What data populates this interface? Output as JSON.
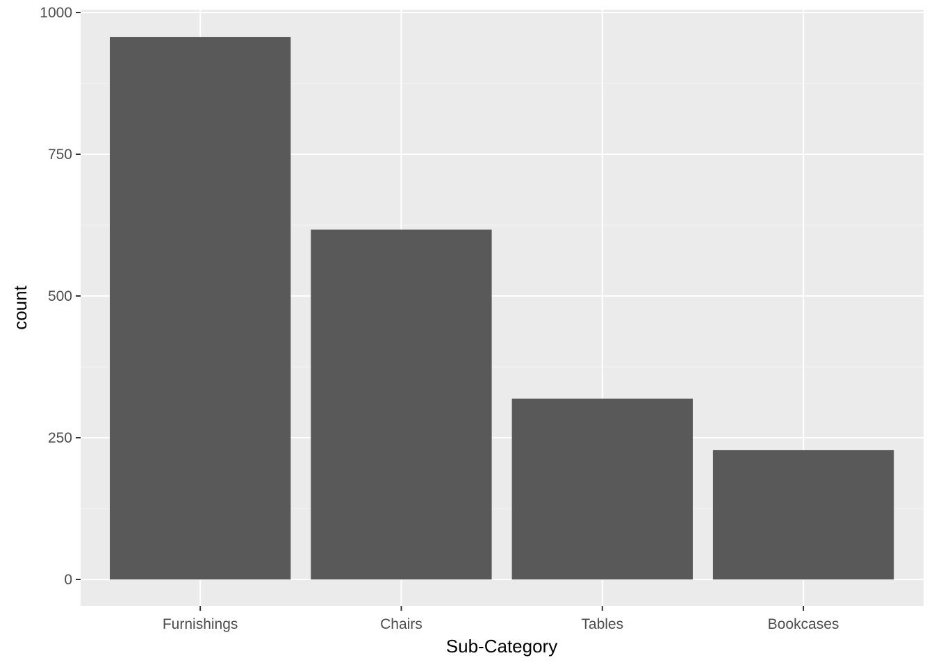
{
  "colors": {
    "panel_background": "#EBEBEB",
    "grid_major": "#FFFFFF",
    "grid_minor": "#F5F5F5",
    "bar_fill": "#595959",
    "tick_mark": "#333333",
    "tick_text": "#4D4D4D",
    "axis_title": "#000000"
  },
  "chart_data": {
    "type": "bar",
    "categories": [
      "Furnishings",
      "Chairs",
      "Tables",
      "Bookcases"
    ],
    "values": [
      957,
      617,
      319,
      228
    ],
    "title": "",
    "xlabel": "Sub-Category",
    "ylabel": "count",
    "ylim": [
      0,
      1000
    ],
    "yticks": [
      0,
      250,
      500,
      750,
      1000
    ],
    "yticks_labels": [
      "0",
      "250",
      "500",
      "750",
      "1000"
    ],
    "grid": true,
    "legend": "none"
  }
}
